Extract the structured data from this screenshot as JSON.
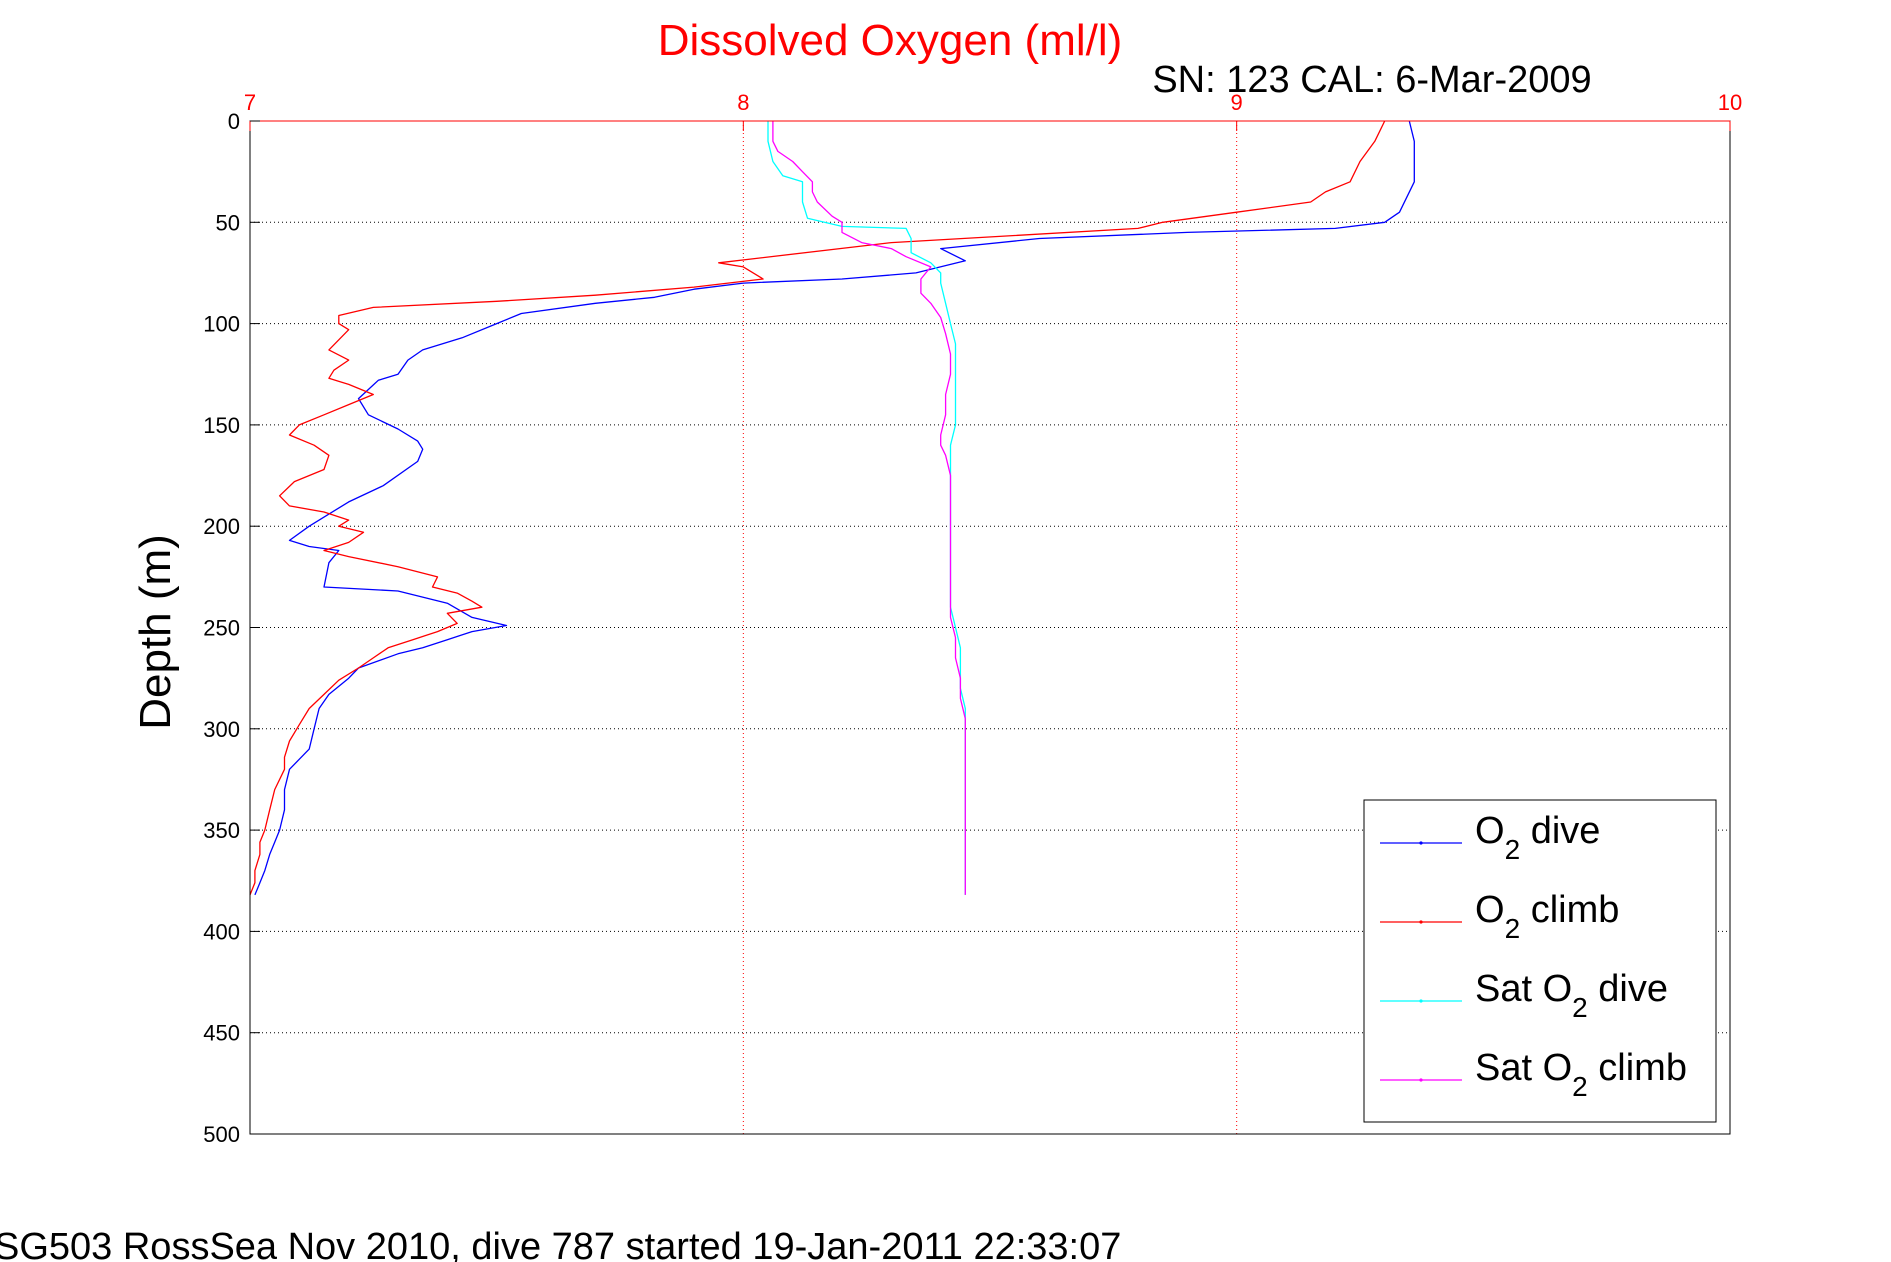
{
  "chart_data": {
    "type": "line",
    "title": "Dissolved Oxygen (ml/l)",
    "subtitle": "SN: 123  CAL: 6-Mar-2009",
    "xlabel": "",
    "ylabel": "Depth (m)",
    "footer": "SG503 RossSea Nov 2010, dive 787 started 19-Jan-2011 22:33:07",
    "xlim": [
      7,
      10
    ],
    "ylim": [
      0,
      500
    ],
    "y_reversed": true,
    "x_axis_position": "top",
    "x_ticks": [
      7,
      8,
      9,
      10
    ],
    "y_ticks": [
      0,
      50,
      100,
      150,
      200,
      250,
      300,
      350,
      400,
      450,
      500
    ],
    "grid": true,
    "legend_position": "bottom-right",
    "colors": {
      "title": "#ff0000",
      "x_axis": "#ff0000",
      "y_axis": "#000000",
      "grid_x": "#ff0000",
      "grid_y": "#000000"
    },
    "series": [
      {
        "name": "O2 dive",
        "legend": {
          "base": "O",
          "sub": "2",
          "suffix": " dive"
        },
        "color": "#0000ff",
        "points": [
          [
            9.35,
            0
          ],
          [
            9.36,
            10
          ],
          [
            9.36,
            20
          ],
          [
            9.36,
            30
          ],
          [
            9.33,
            45
          ],
          [
            9.3,
            50
          ],
          [
            9.2,
            53
          ],
          [
            8.9,
            55
          ],
          [
            8.6,
            58
          ],
          [
            8.4,
            63
          ],
          [
            8.45,
            69
          ],
          [
            8.35,
            75
          ],
          [
            8.2,
            78
          ],
          [
            8.0,
            80
          ],
          [
            7.9,
            83
          ],
          [
            7.82,
            87
          ],
          [
            7.7,
            90
          ],
          [
            7.55,
            95
          ],
          [
            7.5,
            100
          ],
          [
            7.43,
            107
          ],
          [
            7.35,
            113
          ],
          [
            7.32,
            118
          ],
          [
            7.3,
            125
          ],
          [
            7.26,
            128
          ],
          [
            7.22,
            137
          ],
          [
            7.24,
            145
          ],
          [
            7.3,
            152
          ],
          [
            7.34,
            158
          ],
          [
            7.35,
            162
          ],
          [
            7.34,
            168
          ],
          [
            7.27,
            180
          ],
          [
            7.2,
            188
          ],
          [
            7.12,
            200
          ],
          [
            7.08,
            207
          ],
          [
            7.12,
            210
          ],
          [
            7.18,
            212
          ],
          [
            7.16,
            218
          ],
          [
            7.15,
            230
          ],
          [
            7.3,
            232
          ],
          [
            7.4,
            238
          ],
          [
            7.45,
            245
          ],
          [
            7.52,
            249
          ],
          [
            7.45,
            252
          ],
          [
            7.4,
            256
          ],
          [
            7.35,
            260
          ],
          [
            7.3,
            263
          ],
          [
            7.22,
            270
          ],
          [
            7.2,
            275
          ],
          [
            7.16,
            283
          ],
          [
            7.14,
            290
          ],
          [
            7.13,
            300
          ],
          [
            7.12,
            310
          ],
          [
            7.08,
            320
          ],
          [
            7.07,
            330
          ],
          [
            7.07,
            340
          ],
          [
            7.06,
            350
          ],
          [
            7.05,
            356
          ],
          [
            7.04,
            362
          ],
          [
            7.03,
            370
          ],
          [
            7.02,
            376
          ],
          [
            7.01,
            382
          ]
        ]
      },
      {
        "name": "O2 climb",
        "legend": {
          "base": "O",
          "sub": "2",
          "suffix": " climb"
        },
        "color": "#ff0000",
        "points": [
          [
            9.3,
            0
          ],
          [
            9.28,
            10
          ],
          [
            9.25,
            20
          ],
          [
            9.23,
            30
          ],
          [
            9.18,
            35
          ],
          [
            9.15,
            40
          ],
          [
            9.0,
            45
          ],
          [
            8.85,
            50
          ],
          [
            8.8,
            53
          ],
          [
            8.3,
            60
          ],
          [
            7.95,
            70
          ],
          [
            8.0,
            72
          ],
          [
            8.04,
            78
          ],
          [
            7.9,
            82
          ],
          [
            7.7,
            86
          ],
          [
            7.5,
            89
          ],
          [
            7.25,
            92
          ],
          [
            7.18,
            96
          ],
          [
            7.18,
            100
          ],
          [
            7.2,
            103
          ],
          [
            7.18,
            108
          ],
          [
            7.16,
            113
          ],
          [
            7.2,
            118
          ],
          [
            7.17,
            123
          ],
          [
            7.16,
            127
          ],
          [
            7.2,
            130
          ],
          [
            7.25,
            135
          ],
          [
            7.2,
            140
          ],
          [
            7.15,
            145
          ],
          [
            7.1,
            150
          ],
          [
            7.08,
            155
          ],
          [
            7.13,
            160
          ],
          [
            7.16,
            165
          ],
          [
            7.15,
            172
          ],
          [
            7.09,
            178
          ],
          [
            7.06,
            185
          ],
          [
            7.08,
            190
          ],
          [
            7.15,
            193
          ],
          [
            7.2,
            197
          ],
          [
            7.18,
            200
          ],
          [
            7.23,
            203
          ],
          [
            7.2,
            208
          ],
          [
            7.15,
            212
          ],
          [
            7.2,
            215
          ],
          [
            7.3,
            220
          ],
          [
            7.38,
            225
          ],
          [
            7.37,
            230
          ],
          [
            7.42,
            233
          ],
          [
            7.45,
            237
          ],
          [
            7.47,
            240
          ],
          [
            7.4,
            243
          ],
          [
            7.42,
            248
          ],
          [
            7.38,
            252
          ],
          [
            7.33,
            256
          ],
          [
            7.28,
            260
          ],
          [
            7.25,
            265
          ],
          [
            7.22,
            270
          ],
          [
            7.18,
            276
          ],
          [
            7.15,
            283
          ],
          [
            7.12,
            290
          ],
          [
            7.1,
            298
          ],
          [
            7.08,
            306
          ],
          [
            7.07,
            314
          ],
          [
            7.07,
            320
          ],
          [
            7.05,
            330
          ],
          [
            7.04,
            340
          ],
          [
            7.03,
            350
          ],
          [
            7.02,
            356
          ],
          [
            7.02,
            362
          ],
          [
            7.01,
            370
          ],
          [
            7.01,
            376
          ],
          [
            7.0,
            382
          ]
        ]
      },
      {
        "name": "Sat O2 dive",
        "legend": {
          "base": "Sat O",
          "sub": "2",
          "suffix": " dive"
        },
        "color": "#00ffff",
        "points": [
          [
            8.05,
            0
          ],
          [
            8.05,
            10
          ],
          [
            8.06,
            20
          ],
          [
            8.08,
            27
          ],
          [
            8.12,
            30
          ],
          [
            8.12,
            40
          ],
          [
            8.13,
            48
          ],
          [
            8.2,
            52
          ],
          [
            8.33,
            53
          ],
          [
            8.34,
            58
          ],
          [
            8.34,
            65
          ],
          [
            8.38,
            70
          ],
          [
            8.4,
            75
          ],
          [
            8.4,
            80
          ],
          [
            8.41,
            90
          ],
          [
            8.42,
            100
          ],
          [
            8.43,
            110
          ],
          [
            8.43,
            120
          ],
          [
            8.43,
            130
          ],
          [
            8.43,
            140
          ],
          [
            8.43,
            150
          ],
          [
            8.42,
            160
          ],
          [
            8.42,
            170
          ],
          [
            8.42,
            180
          ],
          [
            8.42,
            190
          ],
          [
            8.42,
            200
          ],
          [
            8.42,
            210
          ],
          [
            8.42,
            220
          ],
          [
            8.42,
            230
          ],
          [
            8.42,
            240
          ],
          [
            8.43,
            250
          ],
          [
            8.44,
            260
          ],
          [
            8.44,
            270
          ],
          [
            8.44,
            280
          ],
          [
            8.45,
            290
          ],
          [
            8.45,
            300
          ],
          [
            8.45,
            310
          ],
          [
            8.45,
            320
          ],
          [
            8.45,
            330
          ],
          [
            8.45,
            340
          ],
          [
            8.45,
            350
          ],
          [
            8.45,
            360
          ],
          [
            8.45,
            370
          ],
          [
            8.45,
            382
          ]
        ]
      },
      {
        "name": "Sat O2 climb",
        "legend": {
          "base": "Sat O",
          "sub": "2",
          "suffix": " climb"
        },
        "color": "#ff00ff",
        "points": [
          [
            8.06,
            0
          ],
          [
            8.06,
            10
          ],
          [
            8.07,
            15
          ],
          [
            8.1,
            20
          ],
          [
            8.12,
            25
          ],
          [
            8.14,
            30
          ],
          [
            8.14,
            35
          ],
          [
            8.15,
            40
          ],
          [
            8.18,
            47
          ],
          [
            8.2,
            50
          ],
          [
            8.2,
            55
          ],
          [
            8.24,
            60
          ],
          [
            8.3,
            63
          ],
          [
            8.33,
            67
          ],
          [
            8.38,
            72
          ],
          [
            8.36,
            78
          ],
          [
            8.36,
            85
          ],
          [
            8.38,
            90
          ],
          [
            8.4,
            97
          ],
          [
            8.41,
            105
          ],
          [
            8.42,
            115
          ],
          [
            8.42,
            125
          ],
          [
            8.41,
            135
          ],
          [
            8.41,
            145
          ],
          [
            8.4,
            155
          ],
          [
            8.4,
            160
          ],
          [
            8.41,
            165
          ],
          [
            8.42,
            175
          ],
          [
            8.42,
            190
          ],
          [
            8.42,
            205
          ],
          [
            8.42,
            220
          ],
          [
            8.42,
            235
          ],
          [
            8.42,
            245
          ],
          [
            8.43,
            255
          ],
          [
            8.43,
            265
          ],
          [
            8.44,
            275
          ],
          [
            8.44,
            285
          ],
          [
            8.45,
            295
          ],
          [
            8.45,
            310
          ],
          [
            8.45,
            330
          ],
          [
            8.45,
            350
          ],
          [
            8.45,
            370
          ],
          [
            8.45,
            382
          ]
        ]
      }
    ]
  }
}
